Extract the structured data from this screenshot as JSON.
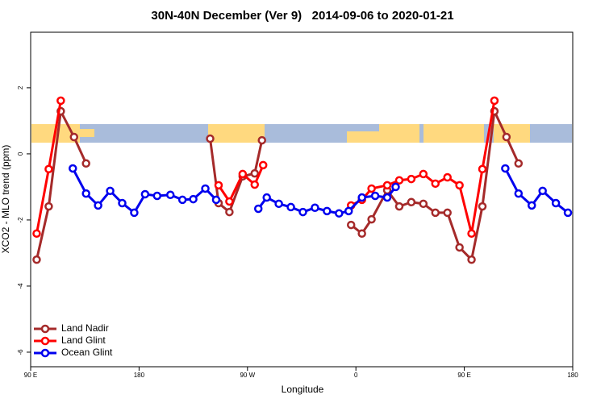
{
  "chart_data": {
    "type": "line",
    "title": "30N-40N December (Ver 9)   2014-09-06 to 2020-01-21",
    "x_label": "Longitude",
    "y_label": "XCO2 - MLO trend (ppm)",
    "xlim": [
      90,
      540
    ],
    "ylim": [
      -6.44,
      3.68
    ],
    "xticks": [
      {
        "value": 90,
        "label": "90 E"
      },
      180,
      {
        "value": 270,
        "label": "90 W"
      },
      {
        "value": 360,
        "label": "0"
      },
      {
        "value": 450,
        "label": "90 E"
      },
      {
        "value": 540,
        "label": "180"
      }
    ],
    "yticks": [
      2,
      0,
      -2,
      -4,
      -6
    ],
    "legend": "bottom-left",
    "series": [
      {
        "name": "Land Nadir",
        "color": "#a52a2a",
        "x": [
          95,
          105,
          115,
          126,
          136,
          null,
          239,
          246,
          255,
          266,
          276,
          282,
          null,
          356,
          365,
          373,
          386,
          396,
          406,
          416,
          426,
          436,
          446,
          456,
          465,
          475,
          485,
          495
        ],
        "values": [
          -3.2,
          -1.59,
          1.29,
          0.51,
          -0.29,
          null,
          0.46,
          -1.49,
          -1.76,
          -0.68,
          -0.59,
          0.41,
          null,
          -2.15,
          -2.41,
          -1.98,
          -1.1,
          -1.59,
          -1.46,
          -1.51,
          -1.78,
          -1.78,
          -2.83,
          -3.2,
          -1.59,
          1.29,
          0.51,
          -0.29
        ]
      },
      {
        "name": "Land Glint",
        "color": "#ff0000",
        "x": [
          95,
          105,
          115,
          null,
          246,
          255,
          266,
          276,
          283,
          null,
          356,
          365,
          373,
          386,
          396,
          406,
          416,
          426,
          436,
          446,
          456,
          465,
          475
        ],
        "values": [
          -2.41,
          -0.46,
          1.61,
          null,
          -0.95,
          -1.44,
          -0.61,
          -0.93,
          -0.34,
          null,
          -1.56,
          -1.39,
          -1.05,
          -0.95,
          -0.8,
          -0.76,
          -0.61,
          -0.9,
          -0.71,
          -0.95,
          -2.41,
          -0.46,
          1.61
        ]
      },
      {
        "name": "Ocean Glint",
        "color": "#0000ee",
        "x": [
          125,
          136,
          146,
          156,
          166,
          176,
          185,
          195,
          206,
          216,
          225,
          235,
          244,
          null,
          279,
          286,
          296,
          306,
          316,
          326,
          336,
          346,
          354,
          365,
          376,
          386,
          393,
          null,
          484,
          495,
          506,
          515,
          526,
          536
        ],
        "values": [
          -0.44,
          -1.2,
          -1.56,
          -1.12,
          -1.49,
          -1.78,
          -1.22,
          -1.27,
          -1.24,
          -1.39,
          -1.37,
          -1.05,
          -1.39,
          null,
          -1.66,
          -1.32,
          -1.51,
          -1.61,
          -1.76,
          -1.63,
          -1.73,
          -1.8,
          -1.73,
          -1.32,
          -1.27,
          -1.32,
          -1.0,
          null,
          -0.44,
          -1.2,
          -1.56,
          -1.12,
          -1.49,
          -1.78
        ]
      }
    ]
  }
}
